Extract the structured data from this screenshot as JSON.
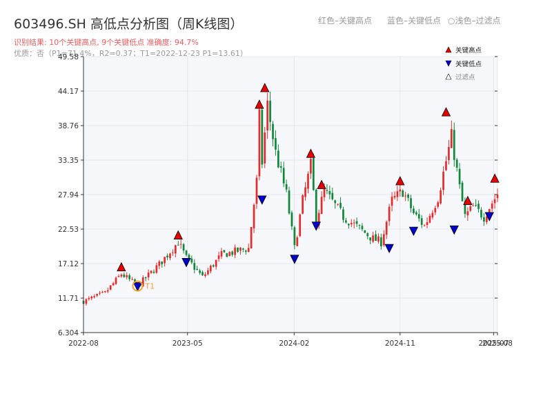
{
  "header": {
    "title": "603496.SH 高低点分析图（周K线图）",
    "legend_red": "红色–关键高点",
    "legend_blue": "蓝色–关键低点",
    "legend_filtered": "浅色–过滤点",
    "result_line": "识别结果: 10个关键高点, 9个关键低点   准确度: 94.7%",
    "quality_line": "优质：否（P1=71.4%，R2=0.37；T1=2022-12-23 P1=13.61）"
  },
  "colors": {
    "up": "#e32d2d",
    "down": "#12873c",
    "high_marker": "#e60000",
    "low_marker": "#0000cc",
    "t1_circle": "#f0a030"
  },
  "chart_data": {
    "type": "candlestick",
    "title": "603496.SH 高低点分析图（周K线图）",
    "y_ticks": [
      "6.304",
      "11.71",
      "17.12",
      "22.53",
      "27.94",
      "33.35",
      "38.76",
      "44.17",
      "49.58"
    ],
    "ylim": [
      6.304,
      49.58
    ],
    "x_ticks": [
      "2022-08",
      "2023-05",
      "2024-02",
      "2024-11",
      "2025-07",
      "2025-08"
    ],
    "start_date": "2022-08-05",
    "last_date": "2025-07-11",
    "grid": true,
    "legend_position": "top-right",
    "legend": {
      "key_high": "关键高点",
      "key_low": "关键低点",
      "filtered": "过滤点"
    },
    "anchors": [
      {
        "date": "2022-08-05",
        "price": 11.2
      },
      {
        "date": "2022-09-30",
        "price": 12.5
      },
      {
        "date": "2022-11-11",
        "price": 15.5
      },
      {
        "date": "2022-12-23",
        "price": 13.61
      },
      {
        "date": "2023-02-17",
        "price": 17.0
      },
      {
        "date": "2023-04-07",
        "price": 20.5
      },
      {
        "date": "2023-04-28",
        "price": 18.0
      },
      {
        "date": "2023-06-09",
        "price": 15.0
      },
      {
        "date": "2023-07-28",
        "price": 18.5
      },
      {
        "date": "2023-10-06",
        "price": 19.5
      },
      {
        "date": "2023-10-27",
        "price": 30.0
      },
      {
        "date": "2023-11-03",
        "price": 40.0
      },
      {
        "date": "2023-11-10",
        "price": 33.0
      },
      {
        "date": "2023-11-24",
        "price": 42.0
      },
      {
        "date": "2023-12-15",
        "price": 34.5
      },
      {
        "date": "2024-01-12",
        "price": 28.0
      },
      {
        "date": "2024-02-02",
        "price": 19.5
      },
      {
        "date": "2024-02-23",
        "price": 27.0
      },
      {
        "date": "2024-03-15",
        "price": 32.5
      },
      {
        "date": "2024-03-29",
        "price": 24.0
      },
      {
        "date": "2024-04-19",
        "price": 28.5
      },
      {
        "date": "2024-06-07",
        "price": 24.5
      },
      {
        "date": "2024-08-23",
        "price": 21.0
      },
      {
        "date": "2024-09-13",
        "price": 20.5
      },
      {
        "date": "2024-10-11",
        "price": 27.0
      },
      {
        "date": "2024-11-08",
        "price": 28.5
      },
      {
        "date": "2024-12-06",
        "price": 25.0
      },
      {
        "date": "2025-01-03",
        "price": 23.0
      },
      {
        "date": "2025-02-07",
        "price": 27.5
      },
      {
        "date": "2025-03-14",
        "price": 37.0
      },
      {
        "date": "2025-04-04",
        "price": 29.0
      },
      {
        "date": "2025-04-18",
        "price": 24.5
      },
      {
        "date": "2025-05-09",
        "price": 26.0
      },
      {
        "date": "2025-06-06",
        "price": 24.5
      },
      {
        "date": "2025-06-20",
        "price": 26.0
      },
      {
        "date": "2025-07-11",
        "price": 28.0
      }
    ],
    "key_highs": [
      {
        "date": "2022-11-11",
        "price": 16.5
      },
      {
        "date": "2023-04-07",
        "price": 21.5
      },
      {
        "date": "2023-11-03",
        "price": 42.0
      },
      {
        "date": "2023-11-17",
        "price": 44.6
      },
      {
        "date": "2024-03-15",
        "price": 34.3
      },
      {
        "date": "2024-04-12",
        "price": 29.4
      },
      {
        "date": "2024-11-01",
        "price": 30.0
      },
      {
        "date": "2025-02-28",
        "price": 40.8
      },
      {
        "date": "2025-04-25",
        "price": 26.9
      },
      {
        "date": "2025-07-04",
        "price": 30.4
      }
    ],
    "key_lows": [
      {
        "date": "2022-12-23",
        "price": 13.6
      },
      {
        "date": "2023-04-28",
        "price": 17.4
      },
      {
        "date": "2023-11-10",
        "price": 27.2
      },
      {
        "date": "2024-02-02",
        "price": 17.9
      },
      {
        "date": "2024-03-29",
        "price": 23.1
      },
      {
        "date": "2024-10-04",
        "price": 19.6
      },
      {
        "date": "2024-12-06",
        "price": 22.3
      },
      {
        "date": "2025-03-21",
        "price": 22.5
      },
      {
        "date": "2025-06-20",
        "price": 24.6
      }
    ],
    "t1": {
      "label": "T1",
      "date": "2022-12-23",
      "price": 13.61
    }
  }
}
